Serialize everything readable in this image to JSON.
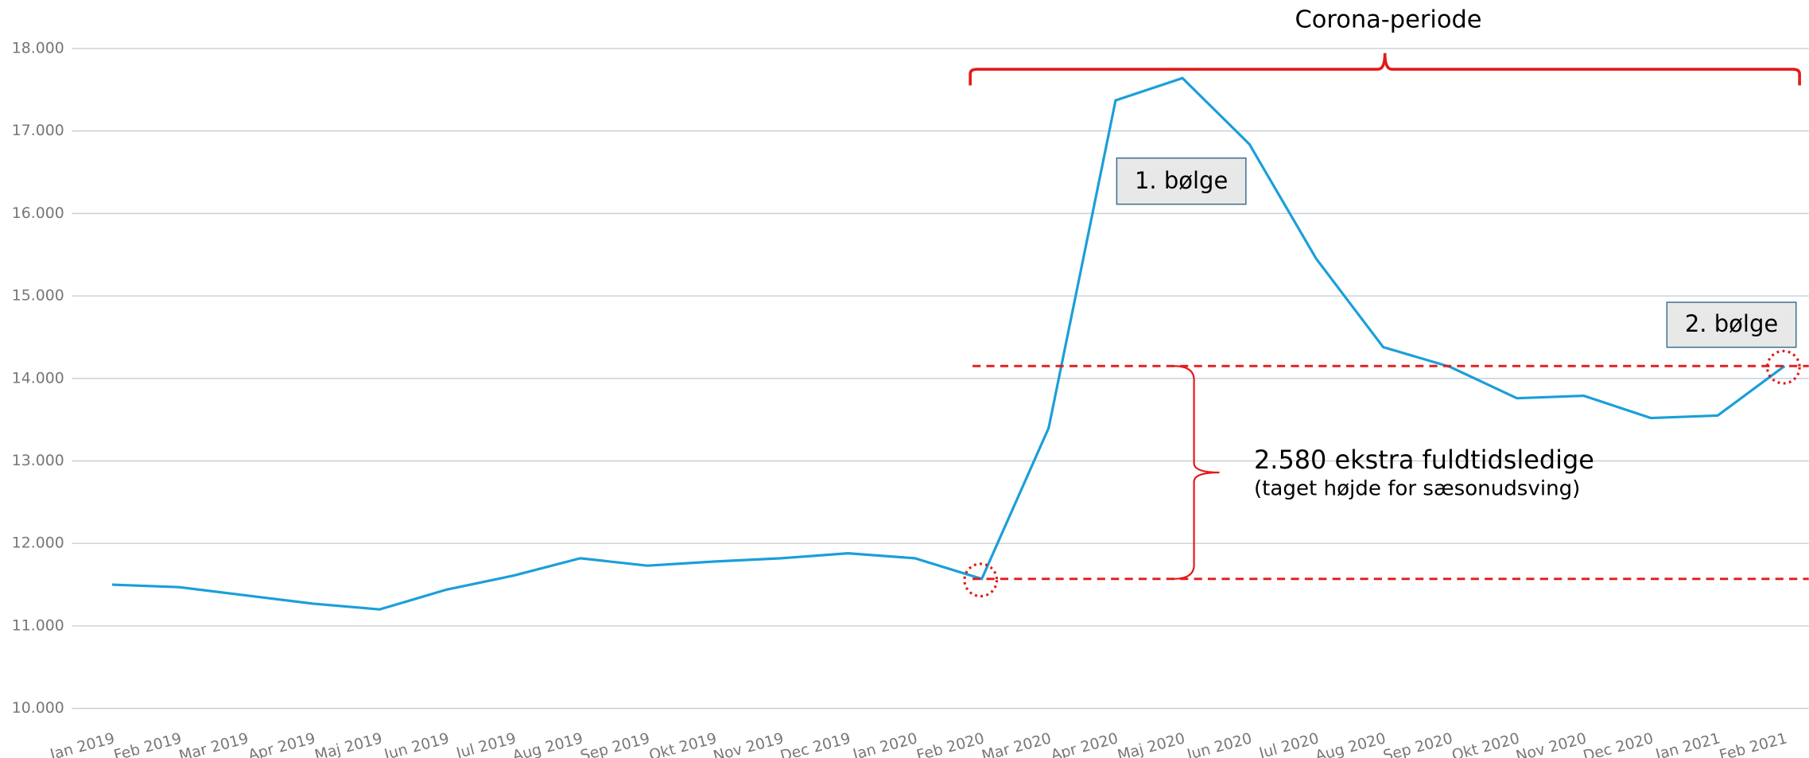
{
  "chart_data": {
    "type": "line",
    "categories": [
      "Jan 2019",
      "Feb 2019",
      "Mar 2019",
      "Apr 2019",
      "Maj 2019",
      "Jun 2019",
      "Jul 2019",
      "Aug 2019",
      "Sep 2019",
      "Okt 2019",
      "Nov 2019",
      "Dec 2019",
      "Jan 2020",
      "Feb 2020",
      "Mar 2020",
      "Apr 2020",
      "Maj 2020",
      "Jun 2020",
      "Jul 2020",
      "Aug 2020",
      "Sep 2020",
      "Okt 2020",
      "Nov 2020",
      "Dec 2020",
      "Jan 2021",
      "Feb 2021"
    ],
    "series": [
      {
        "color": "#1a9fd9",
        "values": [
          11500,
          11470,
          11370,
          11270,
          11200,
          11440,
          11610,
          11820,
          11730,
          11780,
          11820,
          11880,
          11820,
          11570,
          13400,
          17370,
          17640,
          16840,
          15450,
          14380,
          14140,
          13760,
          13790,
          13520,
          13550,
          14150
        ]
      }
    ],
    "ylim": [
      10000,
      18000
    ],
    "yticks": [
      {
        "value": 10000,
        "label": "10.000"
      },
      {
        "value": 11000,
        "label": "11.000"
      },
      {
        "value": 12000,
        "label": "12.000"
      },
      {
        "value": 13000,
        "label": "13.000"
      },
      {
        "value": 14000,
        "label": "14.000"
      },
      {
        "value": 15000,
        "label": "15.000"
      },
      {
        "value": 16000,
        "label": "16.000"
      },
      {
        "value": 17000,
        "label": "17.000"
      },
      {
        "value": 18000,
        "label": "18.000"
      }
    ],
    "grid": true,
    "annotations": {
      "period": "Corona-periode",
      "wave1": "1. bølge",
      "wave2": "2. bølge",
      "difference": "2.580 ekstra fuldtidsledige",
      "difference_note": "(taget højde for sæsonudsving)"
    }
  }
}
